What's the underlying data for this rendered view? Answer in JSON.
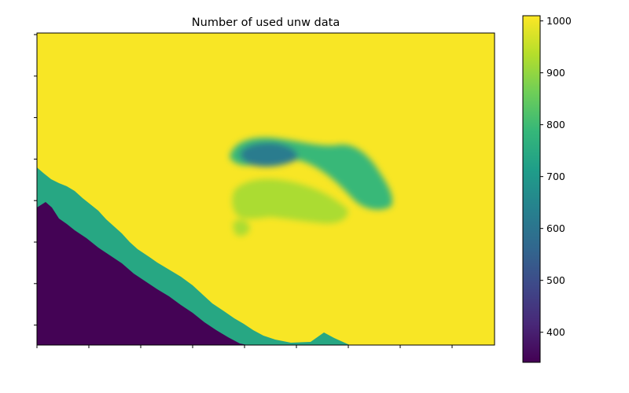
{
  "chart_data": {
    "type": "heatmap",
    "title": "Number of used unw data",
    "xlabel": "",
    "ylabel": "",
    "colormap": "viridis",
    "colorbar": {
      "range": [
        342,
        1010
      ],
      "ticks": [
        400,
        500,
        600,
        700,
        800,
        900,
        1000
      ],
      "tick_labels": [
        "400",
        "500",
        "600",
        "700",
        "800",
        "900",
        "1000"
      ]
    },
    "x_tick_count": 10,
    "y_tick_count": 8,
    "x_tick_labels": [],
    "y_tick_labels": [],
    "regions": [
      {
        "name": "background",
        "value": 1005
      },
      {
        "name": "lower-left-corner",
        "value": 345
      },
      {
        "name": "coastal-band",
        "value": 740
      },
      {
        "name": "coastal-band-outer",
        "value": 790
      },
      {
        "name": "central-arc",
        "value": 790
      },
      {
        "name": "central-arc-core",
        "value": 620
      },
      {
        "name": "central-diffuse-patch",
        "value": 925
      }
    ]
  },
  "colors": {
    "viridis_low": "#440154",
    "viridis_high": "#fde725",
    "frame": "#000000"
  }
}
